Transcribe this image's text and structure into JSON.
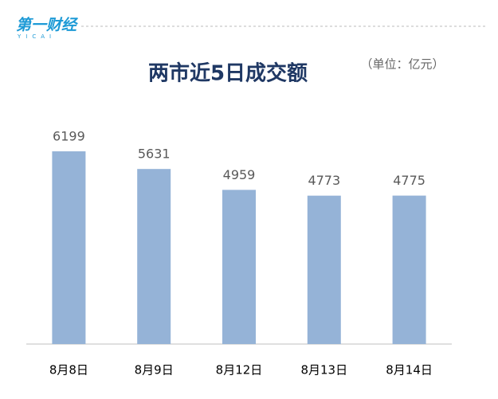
{
  "logo": {
    "text": "第一财经",
    "sub": "YICAI"
  },
  "chart_data": {
    "type": "bar",
    "title": "两市近5日成交额",
    "unit_note": "（单位：亿元）",
    "categories": [
      "8月8日",
      "8月9日",
      "8月12日",
      "8月13日",
      "8月14日"
    ],
    "values": [
      6199,
      5631,
      4959,
      4773,
      4775
    ],
    "color": "#95b3d7"
  }
}
